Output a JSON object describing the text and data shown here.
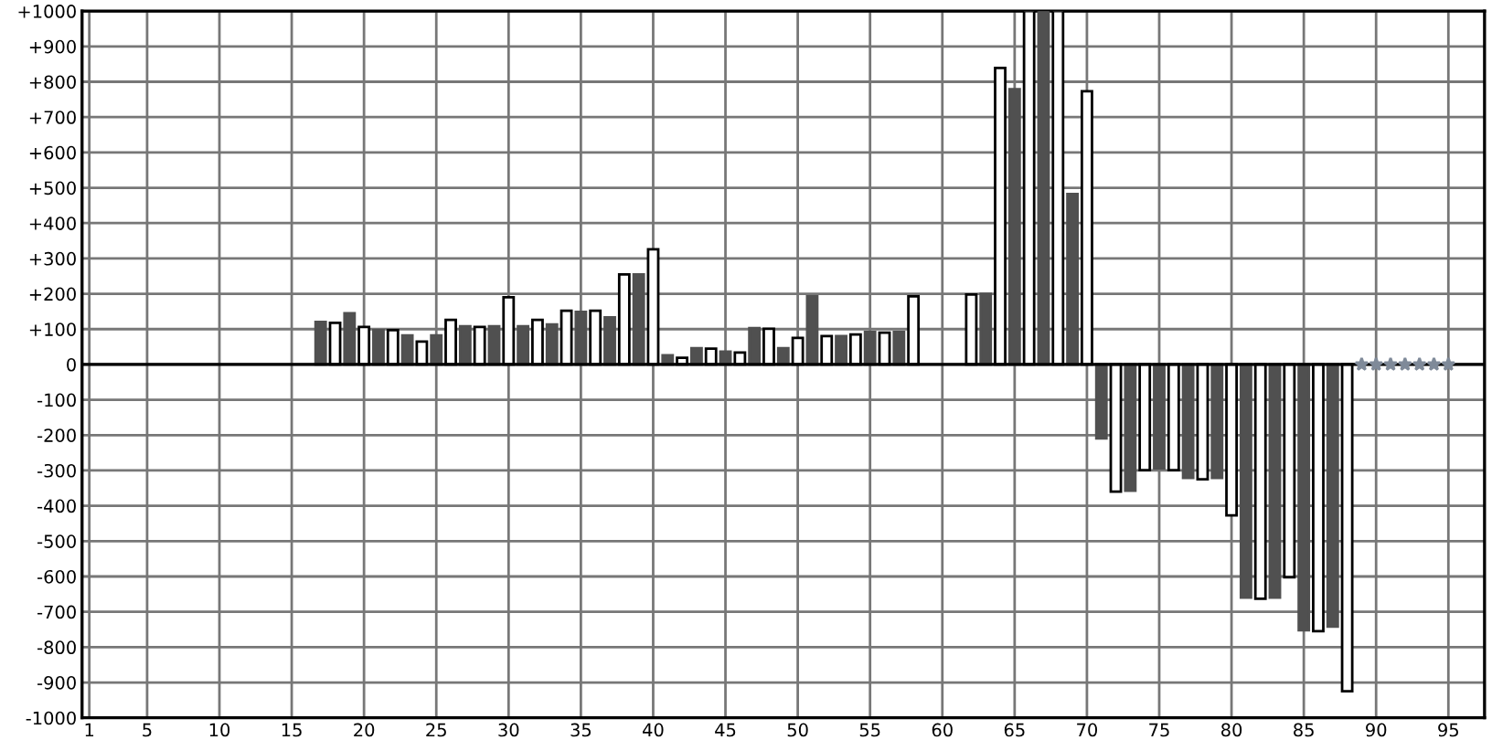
{
  "chart_data": {
    "type": "bar",
    "series": [
      {
        "color": "#505050",
        "x": [
          17,
          19,
          21,
          23,
          25,
          27,
          29,
          31,
          33,
          35,
          37,
          39,
          41,
          43,
          45,
          47,
          49,
          51,
          53,
          55,
          57,
          63,
          65,
          67,
          69,
          71,
          73,
          75,
          77,
          79,
          81,
          83,
          85,
          87
        ],
        "values": [
          120,
          145,
          97,
          82,
          82,
          108,
          108,
          108,
          113,
          149,
          133,
          255,
          26,
          46,
          36,
          103,
          46,
          193,
          80,
          92,
          92,
          200,
          779,
          1000,
          482,
          -209,
          -357,
          -294,
          -321,
          -321,
          -660,
          -660,
          -752,
          -742
        ]
      },
      {
        "color": "#ffffff",
        "x": [
          18,
          20,
          22,
          24,
          26,
          28,
          30,
          32,
          34,
          36,
          38,
          40,
          42,
          44,
          46,
          48,
          50,
          52,
          54,
          56,
          58,
          62,
          64,
          66,
          68,
          70,
          72,
          74,
          76,
          78,
          80,
          82,
          84,
          86,
          88
        ],
        "values": [
          118,
          106,
          97,
          65,
          126,
          106,
          190,
          126,
          152,
          152,
          255,
          326,
          19,
          45,
          34,
          101,
          75,
          80,
          85,
          90,
          193,
          198,
          839,
          1000,
          1000,
          773,
          -360,
          -299,
          -299,
          -325,
          -427,
          -663,
          -602,
          -755,
          -925
        ]
      },
      {
        "type": "scatter",
        "marker": "star",
        "color": "#7f8a99",
        "x": [
          89,
          90,
          91,
          92,
          93,
          94,
          95
        ],
        "values": [
          0,
          0,
          0,
          0,
          0,
          0,
          0
        ]
      }
    ],
    "xlim": [
      0.5,
      97.5
    ],
    "xticks": [
      1,
      5,
      10,
      15,
      20,
      25,
      30,
      35,
      40,
      45,
      50,
      55,
      60,
      65,
      70,
      75,
      80,
      85,
      90,
      95
    ],
    "ylim": [
      -1000,
      1000
    ],
    "yticks": [
      -1000,
      -900,
      -800,
      -700,
      -600,
      -500,
      -400,
      -300,
      -200,
      -100,
      0,
      {
        "value": 100,
        "label": "+100"
      },
      {
        "value": 200,
        "label": "+200"
      },
      {
        "value": 300,
        "label": "+300"
      },
      {
        "value": 400,
        "label": "+400"
      },
      {
        "value": 500,
        "label": "+500"
      },
      {
        "value": 600,
        "label": "+600"
      },
      {
        "value": 700,
        "label": "+700"
      },
      {
        "value": 800,
        "label": "+800"
      },
      {
        "value": 900,
        "label": "+900"
      },
      {
        "value": 1000,
        "label": "+1000"
      }
    ],
    "ref_lines": [
      {
        "axis": "y",
        "value": 0,
        "color": "#000000"
      }
    ],
    "grid": true
  }
}
